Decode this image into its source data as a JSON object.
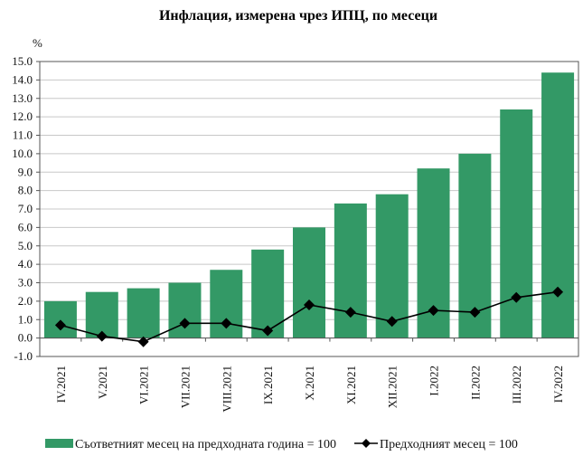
{
  "chart_data": {
    "type": "bar+line",
    "title": "Инфлация, измерена чрез ИПЦ, по месеци",
    "ylabel": "%",
    "ylim": [
      -1.0,
      15.0
    ],
    "ytick_step": 1.0,
    "yticks": [
      "-1.0",
      "0.0",
      "1.0",
      "2.0",
      "3.0",
      "4.0",
      "5.0",
      "6.0",
      "7.0",
      "8.0",
      "9.0",
      "10.0",
      "11.0",
      "12.0",
      "13.0",
      "14.0",
      "15.0"
    ],
    "grid": true,
    "legend_position": "bottom",
    "categories": [
      "IV.2021",
      "V.2021",
      "VI.2021",
      "VII.2021",
      "VIII.2021",
      "IX.2021",
      "X.2021",
      "XI.2021",
      "XII.2021",
      "I.2022",
      "II.2022",
      "III.2022",
      "IV.2022"
    ],
    "series": [
      {
        "name": "Съответният месец на предходната година = 100",
        "type": "bar",
        "color": "#339966",
        "values": [
          2.0,
          2.5,
          2.7,
          3.0,
          3.7,
          4.8,
          6.0,
          7.3,
          7.8,
          9.2,
          10.0,
          12.4,
          14.4
        ]
      },
      {
        "name": "Предходният месец = 100",
        "type": "line",
        "color": "#000000",
        "marker": "diamond",
        "values": [
          0.7,
          0.1,
          -0.2,
          0.8,
          0.8,
          0.4,
          1.8,
          1.4,
          0.9,
          1.5,
          1.4,
          2.2,
          2.5
        ]
      }
    ]
  }
}
